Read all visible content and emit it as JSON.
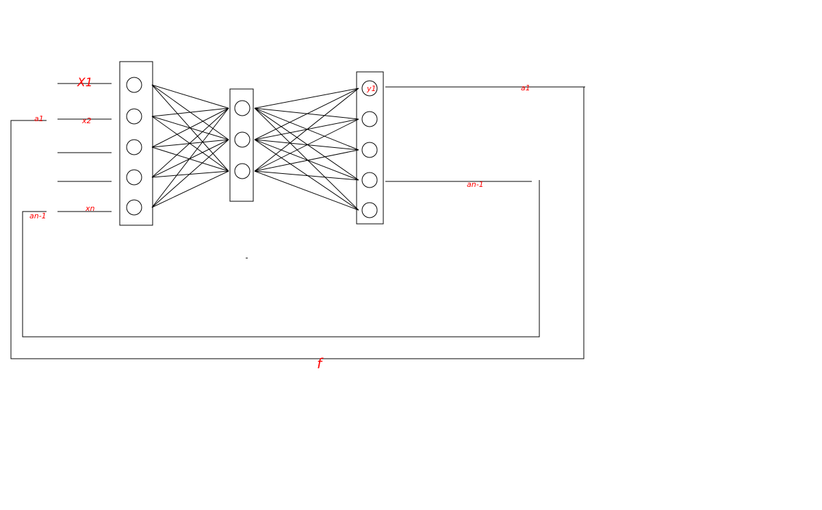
{
  "colors": {
    "line": "#000000",
    "label": "#ff0000",
    "background": "#ffffff"
  },
  "inputs": {
    "x1": "X1",
    "x2": "x2",
    "xn": "xn"
  },
  "feedback": {
    "left_a1": "a1",
    "left_an1": "an-1",
    "right_a1": "a1",
    "right_an1": "an-1"
  },
  "output": {
    "y1": "y1"
  },
  "function_label": "f",
  "layers": [
    {
      "name": "input",
      "nodes": 5
    },
    {
      "name": "hidden",
      "nodes": 3
    },
    {
      "name": "output",
      "nodes": 5
    }
  ]
}
